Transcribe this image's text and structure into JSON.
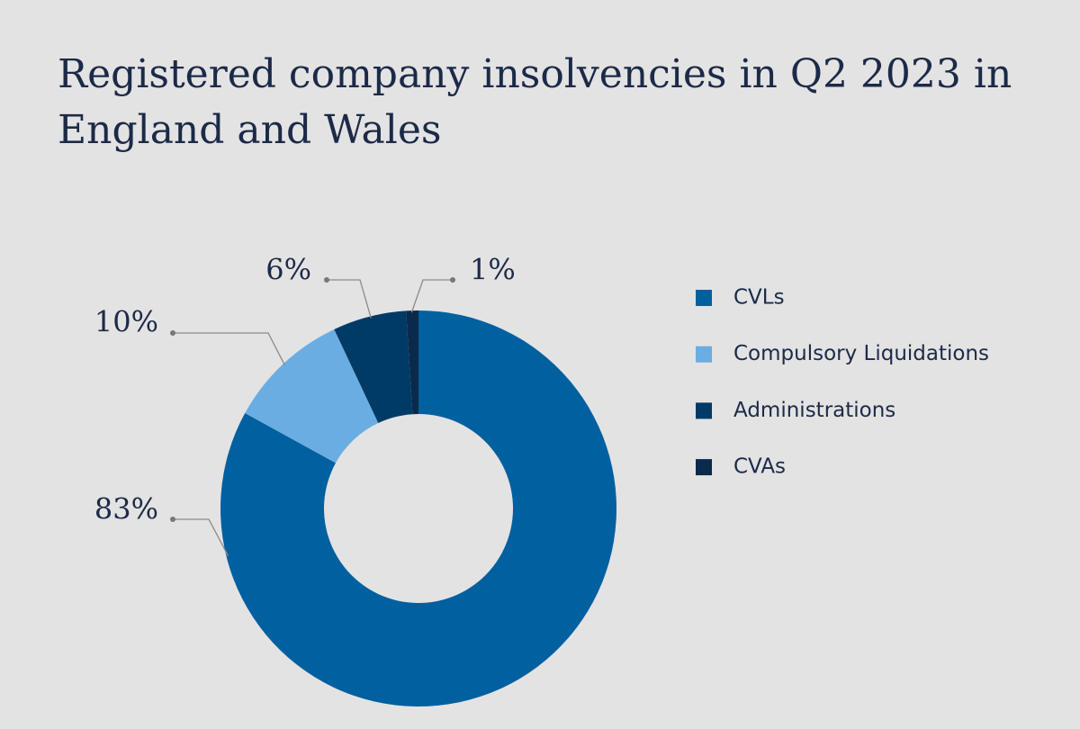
{
  "chart_data": {
    "type": "donut",
    "title": "Registered company insolvencies in Q2 2023 in England and Wales",
    "categories": [
      "CVLs",
      "Compulsory Liquidations",
      "Administrations",
      "CVAs"
    ],
    "values": [
      83,
      10,
      6,
      1
    ],
    "value_labels": [
      "83%",
      "10%",
      "6%",
      "1%"
    ],
    "colors": [
      "#0160a0",
      "#6aade2",
      "#003a66",
      "#0a2a4b"
    ],
    "legend": "right"
  }
}
